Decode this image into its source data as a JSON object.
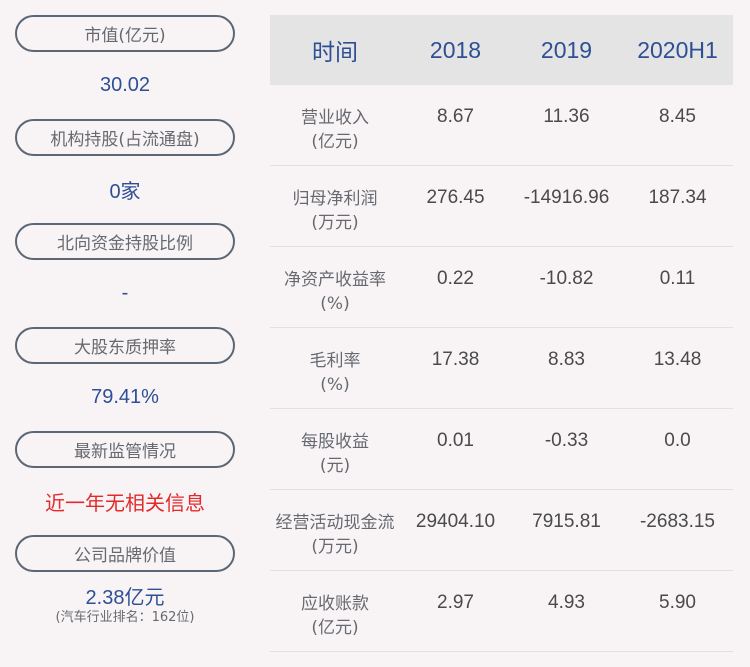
{
  "left_panel": {
    "metrics": [
      {
        "label": "市值(亿元)",
        "value": "30.02"
      },
      {
        "label": "机构持股(占流通盘)",
        "value": "0家"
      },
      {
        "label": "北向资金持股比例",
        "value": "-"
      },
      {
        "label": "大股东质押率",
        "value": "79.41%"
      },
      {
        "label": "最新监管情况",
        "value": "近一年无相关信息",
        "value_color": "#e32a2a"
      },
      {
        "label": "公司品牌价值",
        "value": "2.38亿元",
        "sub_value": "(汽车行业排名：162位)"
      }
    ]
  },
  "table": {
    "headers": [
      "时间",
      "2018",
      "2019",
      "2020H1"
    ],
    "rows": [
      {
        "label": "营业收入",
        "unit": "(亿元)",
        "values": [
          "8.67",
          "11.36",
          "8.45"
        ]
      },
      {
        "label": "归母净利润",
        "unit": "(万元)",
        "values": [
          "276.45",
          "-14916.96",
          "187.34"
        ]
      },
      {
        "label": "净资产收益率",
        "unit": "(%)",
        "values": [
          "0.22",
          "-10.82",
          "0.11"
        ]
      },
      {
        "label": "毛利率",
        "unit": "(%)",
        "values": [
          "17.38",
          "8.83",
          "13.48"
        ]
      },
      {
        "label": "每股收益",
        "unit": "(元)",
        "values": [
          "0.01",
          "-0.33",
          "0.0"
        ]
      },
      {
        "label": "经营活动现金流",
        "unit": "(万元)",
        "values": [
          "29404.10",
          "7915.81",
          "-2683.15"
        ]
      },
      {
        "label": "应收账款",
        "unit": "(亿元)",
        "values": [
          "2.97",
          "4.93",
          "5.90"
        ]
      }
    ]
  },
  "colors": {
    "accent_blue": "#2e4f94",
    "alert_red": "#e32a2a",
    "header_bg": "#e4e4e4",
    "page_bg": "#f8f4f6"
  }
}
